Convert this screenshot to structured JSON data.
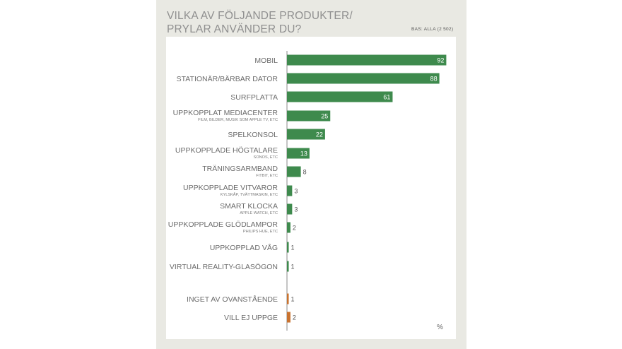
{
  "title_lines": [
    "VILKA AV FÖLJANDE PRODUKTER/",
    "PRYLAR ANVÄNDER DU?"
  ],
  "base_label": "BAS: ALLA (2 502)",
  "unit": "%",
  "colors": {
    "primary": "#3e8a4d",
    "secondary": "#c9722e",
    "panel": "#e9e9e3",
    "card": "#ffffff"
  },
  "chart_data": {
    "type": "bar",
    "orientation": "horizontal",
    "categories": [
      {
        "label": "MOBIL",
        "sub": ""
      },
      {
        "label": "STATIONÄR/BÄRBAR DATOR",
        "sub": ""
      },
      {
        "label": "SURFPLATTA",
        "sub": ""
      },
      {
        "label": "UPPKOPPLAT MEDIACENTER",
        "sub": "FILM, BILDER, MUSIK SOM APPLE TV, ETC"
      },
      {
        "label": "SPELKONSOL",
        "sub": ""
      },
      {
        "label": "UPPKOPPLADE HÖGTALARE",
        "sub": "SONOS, ETC"
      },
      {
        "label": "TRÄNINGSARMBAND",
        "sub": "FITBIT, ETC"
      },
      {
        "label": "UPPKOPPLADE VITVAROR",
        "sub": "KYLSKÅP, TVÄTTMASKIN, ETC"
      },
      {
        "label": "SMART KLOCKA",
        "sub": "APPLE WATCH, ETC"
      },
      {
        "label": "UPPKOPPLADE GLÖDLAMPOR",
        "sub": "PHILIPS HUE, ETC"
      },
      {
        "label": "UPPKOPPLAD VÅG",
        "sub": ""
      },
      {
        "label": "VIRTUAL REALITY-GLASÖGON",
        "sub": ""
      },
      {
        "label": "INGET AV OVANSTÅENDE",
        "sub": ""
      },
      {
        "label": "VILL EJ UPPGE",
        "sub": ""
      }
    ],
    "values": [
      92,
      88,
      61,
      25,
      22,
      13,
      8,
      3,
      3,
      2,
      1,
      1,
      1,
      2
    ],
    "groups": [
      "product",
      "product",
      "product",
      "product",
      "product",
      "product",
      "product",
      "product",
      "product",
      "product",
      "product",
      "product",
      "other",
      "other"
    ],
    "xlim": [
      0,
      100
    ],
    "grid": false,
    "legend": "none"
  }
}
